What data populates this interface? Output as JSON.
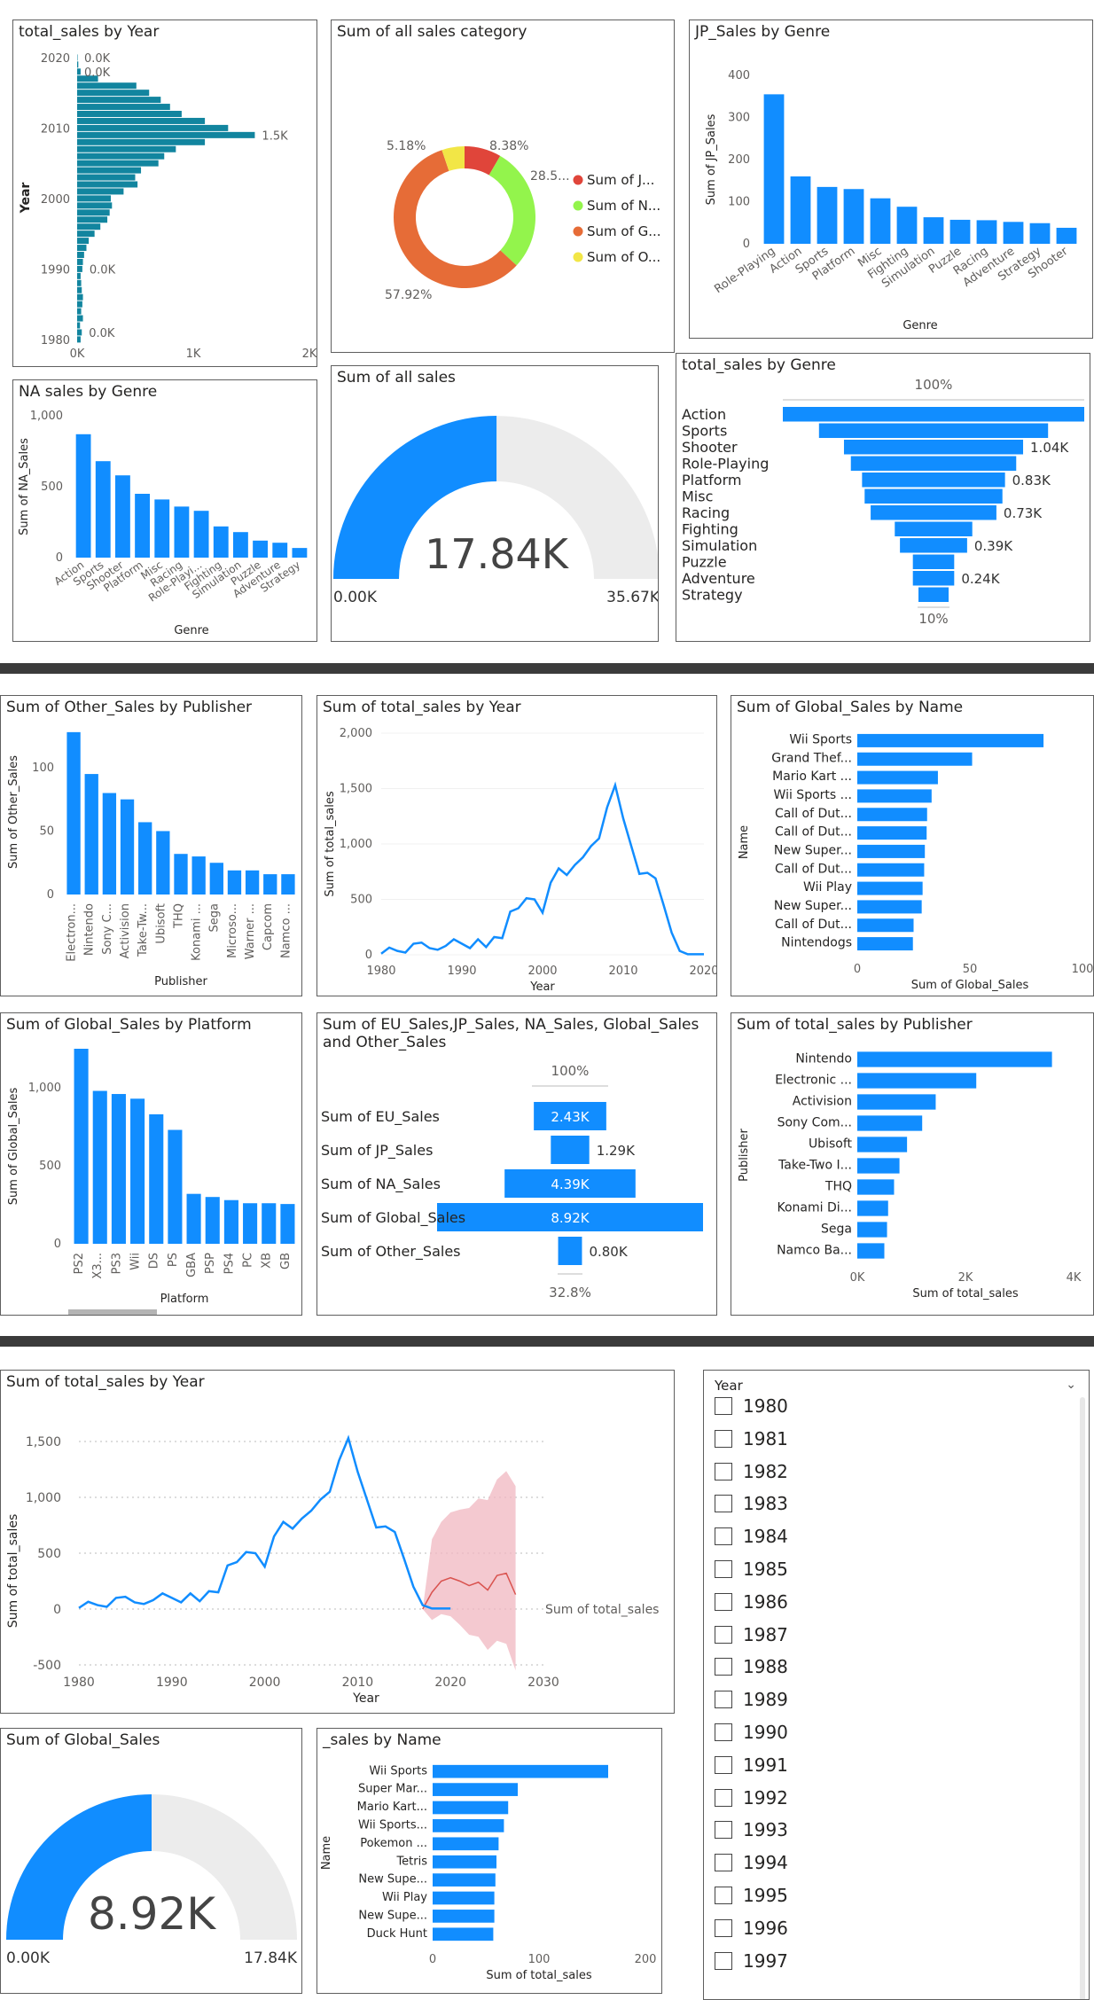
{
  "colors": {
    "accent": "#118dff",
    "teal": "#12859f",
    "orange": "#e66c37",
    "lime": "#93f44c",
    "yellow": "#f2e646",
    "red": "#e0453a",
    "forecast": "#f0b7c0"
  },
  "c1": {
    "title": "total_sales by Year",
    "xlabel": "Sum of total_sales",
    "ylabel": "Year",
    "ticks_x": [
      "0K",
      "1K",
      "2K"
    ],
    "ticks_y": [
      "2020",
      "2010",
      "2000",
      "1990",
      "1980"
    ],
    "labels": [
      "0.0K",
      "0.0K",
      "1.5K",
      "0.0K",
      "0.0K"
    ]
  },
  "c2": {
    "title": "Sum of all sales category",
    "labels": [
      "5.18%",
      "8.38%",
      "28.5...",
      "57.92%"
    ],
    "legend": [
      "Sum of J...",
      "Sum of N...",
      "Sum of G...",
      "Sum of O..."
    ]
  },
  "c3": {
    "title": "JP_Sales by Genre",
    "xlabel": "Genre",
    "ylabel": "Sum of JP_Sales",
    "ticks_y": [
      "400",
      "300",
      "200",
      "100",
      "0"
    ]
  },
  "c4": {
    "title": "NA sales by Genre",
    "xlabel": "Genre",
    "ylabel": "Sum of NA_Sales",
    "ticks_y": [
      "1,000",
      "500",
      "0"
    ]
  },
  "c5": {
    "title": "Sum of all sales",
    "value": "17.84K",
    "min": "0.00K",
    "max": "35.67K"
  },
  "c6": {
    "title": "total_sales by Genre",
    "top": "100%",
    "bottom": "10%",
    "labels": [
      "1.04K",
      "0.83K",
      "0.73K",
      "0.39K",
      "0.24K"
    ]
  },
  "c7": {
    "title": "Sum of Other_Sales by Publisher",
    "xlabel": "Publisher",
    "ylabel": "Sum of Other_Sales",
    "ticks_y": [
      "100",
      "50",
      "0"
    ]
  },
  "c8": {
    "title": "Sum of total_sales by Year",
    "xlabel": "Year",
    "ylabel": "Sum of total_sales",
    "ticks_y": [
      "2,000",
      "1,500",
      "1,000",
      "500",
      "0"
    ],
    "ticks_x": [
      "1980",
      "1990",
      "2000",
      "2010",
      "2020"
    ]
  },
  "c9": {
    "title": "Sum of Global_Sales by Name",
    "xlabel": "Sum of Global_Sales",
    "ylabel": "Name",
    "ticks_x": [
      "0",
      "50",
      "100"
    ]
  },
  "c10": {
    "title": "Sum of Global_Sales by Platform",
    "xlabel": "Platform",
    "ylabel": "Sum of Global_Sales",
    "ticks_y": [
      "1,000",
      "500",
      "0"
    ]
  },
  "c11": {
    "title1": "Sum of EU_Sales,JP_Sales, NA_Sales, Global_Sales",
    "title2": "and Other_Sales",
    "top": "100%",
    "bottom": "32.8%",
    "rows": [
      "Sum of EU_Sales",
      "Sum of JP_Sales",
      "Sum of NA_Sales",
      "Sum of Global_Sales",
      "Sum of Other_Sales"
    ],
    "labels": [
      "2.43K",
      "1.29K",
      "4.39K",
      "8.92K",
      "0.80K"
    ]
  },
  "c12": {
    "title": "Sum of total_sales by Publisher",
    "xlabel": "Sum of total_sales",
    "ylabel": "Publisher",
    "ticks_x": [
      "0K",
      "2K",
      "4K"
    ]
  },
  "c13": {
    "title": "Sum of total_sales by Year",
    "xlabel": "Year",
    "ylabel": "Sum of total_sales",
    "series_label": "Sum of total_sales",
    "ticks_y": [
      "1,500",
      "1,000",
      "500",
      "0",
      "-500"
    ],
    "ticks_x": [
      "1980",
      "1990",
      "2000",
      "2010",
      "2020",
      "2030"
    ]
  },
  "c14": {
    "title": "Sum of Global_Sales",
    "value": "8.92K",
    "min": "0.00K",
    "max": "17.84K"
  },
  "c15": {
    "title": "_sales by Name",
    "xlabel": "Sum of total_sales",
    "ylabel": "Name",
    "ticks_x": [
      "0",
      "100",
      "200"
    ]
  },
  "slicer": {
    "title": "Year",
    "items": [
      "1980",
      "1981",
      "1982",
      "1983",
      "1984",
      "1985",
      "1986",
      "1987",
      "1988",
      "1989",
      "1990",
      "1991",
      "1992",
      "1993",
      "1994",
      "1995",
      "1996",
      "1997"
    ]
  },
  "chart_data": [
    {
      "type": "bar",
      "orientation": "horizontal",
      "title": "total_sales by Year",
      "xlabel": "Sum of total_sales",
      "ylabel": "Year",
      "xlim": [
        0,
        2000
      ],
      "x": [
        1980,
        1981,
        1982,
        1983,
        1984,
        1985,
        1986,
        1987,
        1988,
        1989,
        1990,
        1991,
        1992,
        1993,
        1994,
        1995,
        1996,
        1997,
        1998,
        1999,
        2000,
        2001,
        2002,
        2003,
        2004,
        2005,
        2006,
        2007,
        2008,
        2009,
        2010,
        2011,
        2012,
        2013,
        2014,
        2015,
        2016,
        2017,
        2018,
        2019,
        2020
      ],
      "values": [
        30,
        40,
        25,
        50,
        35,
        45,
        50,
        40,
        35,
        30,
        45,
        50,
        60,
        80,
        100,
        150,
        200,
        260,
        280,
        300,
        290,
        400,
        520,
        500,
        550,
        700,
        750,
        850,
        1100,
        1530,
        1300,
        1100,
        900,
        800,
        720,
        620,
        510,
        180,
        30,
        10,
        2
      ]
    },
    {
      "type": "pie",
      "title": "Sum of all sales category",
      "categories": [
        "Sum of J...",
        "Sum of N...",
        "Sum of G...",
        "Sum of O..."
      ],
      "values": [
        8.38,
        28.5,
        57.92,
        5.18
      ]
    },
    {
      "type": "bar",
      "title": "JP_Sales by Genre",
      "xlabel": "Genre",
      "ylabel": "Sum of JP_Sales",
      "ylim": [
        0,
        400
      ],
      "categories": [
        "Role-Playing",
        "Action",
        "Sports",
        "Platform",
        "Misc",
        "Fighting",
        "Simulation",
        "Puzzle",
        "Racing",
        "Adventure",
        "Strategy",
        "Shooter"
      ],
      "values": [
        355,
        160,
        135,
        130,
        108,
        88,
        63,
        57,
        56,
        52,
        49,
        38
      ]
    },
    {
      "type": "bar",
      "title": "NA sales by Genre",
      "xlabel": "Genre",
      "ylabel": "Sum of NA_Sales",
      "ylim": [
        0,
        1000
      ],
      "categories": [
        "Action",
        "Sports",
        "Shooter",
        "Platform",
        "Misc",
        "Racing",
        "Role-Playi...",
        "Fighting",
        "Simulation",
        "Puzzle",
        "Adventure",
        "Strategy"
      ],
      "values": [
        870,
        680,
        580,
        450,
        410,
        360,
        330,
        220,
        180,
        120,
        105,
        68
      ]
    },
    {
      "type": "gauge",
      "title": "Sum of all sales",
      "value": 17840,
      "min": 0,
      "max": 35670
    },
    {
      "type": "bar",
      "orientation": "funnel",
      "title": "total_sales by Genre",
      "categories": [
        "Action",
        "Sports",
        "Shooter",
        "Role-Playing",
        "Platform",
        "Misc",
        "Racing",
        "Fighting",
        "Simulation",
        "Puzzle",
        "Adventure",
        "Strategy"
      ],
      "values": [
        1750,
        1330,
        1040,
        960,
        830,
        800,
        730,
        450,
        390,
        240,
        240,
        175
      ]
    },
    {
      "type": "bar",
      "title": "Sum of Other_Sales by Publisher",
      "xlabel": "Publisher",
      "ylabel": "Sum of Other_Sales",
      "ylim": [
        0,
        130
      ],
      "categories": [
        "Electron...",
        "Nintendo",
        "Sony C...",
        "Activision",
        "Take-Tw...",
        "Ubisoft",
        "THQ",
        "Konami ...",
        "Sega",
        "Microso...",
        "Warner ...",
        "Capcom",
        "Namco ..."
      ],
      "values": [
        128,
        95,
        80,
        75,
        57,
        50,
        32,
        30,
        25,
        19,
        19,
        16,
        16
      ]
    },
    {
      "type": "line",
      "title": "Sum of total_sales by Year",
      "xlabel": "Year",
      "ylabel": "Sum of total_sales",
      "ylim": [
        0,
        2000
      ],
      "x": [
        1980,
        1981,
        1982,
        1983,
        1984,
        1985,
        1986,
        1987,
        1988,
        1989,
        1990,
        1991,
        1992,
        1993,
        1994,
        1995,
        1996,
        1997,
        1998,
        1999,
        2000,
        2001,
        2002,
        2003,
        2004,
        2005,
        2006,
        2007,
        2008,
        2009,
        2010,
        2011,
        2012,
        2013,
        2014,
        2015,
        2016,
        2017,
        2018,
        2019,
        2020
      ],
      "values": [
        10,
        65,
        35,
        20,
        100,
        110,
        60,
        45,
        80,
        140,
        100,
        60,
        140,
        70,
        160,
        150,
        390,
        420,
        510,
        500,
        380,
        650,
        780,
        720,
        810,
        880,
        980,
        1050,
        1330,
        1530,
        1230,
        980,
        730,
        740,
        690,
        450,
        200,
        35,
        5,
        5,
        5
      ]
    },
    {
      "type": "bar",
      "orientation": "horizontal",
      "title": "Sum of Global_Sales by Name",
      "xlabel": "Sum of Global_Sales",
      "ylabel": "Name",
      "xlim": [
        0,
        100
      ],
      "categories": [
        "Wii Sports",
        "Grand Thef...",
        "Mario Kart ...",
        "Wii Sports ...",
        "Call of Dut...",
        "Call of Dut...",
        "New Super...",
        "Call of Dut...",
        "Wii Play",
        "New Super...",
        "Call of Dut...",
        "Nintendogs"
      ],
      "values": [
        82.7,
        51.0,
        35.8,
        33.0,
        31.0,
        30.8,
        30.0,
        29.7,
        29.0,
        28.6,
        25.0,
        24.7
      ]
    },
    {
      "type": "bar",
      "title": "Sum of Global_Sales by Platform",
      "xlabel": "Platform",
      "ylabel": "Sum of Global_Sales",
      "ylim": [
        0,
        1250
      ],
      "categories": [
        "PS2",
        "X3...",
        "PS3",
        "Wii",
        "DS",
        "PS",
        "GBA",
        "PSP",
        "PS4",
        "PC",
        "XB",
        "GB"
      ],
      "values": [
        1250,
        980,
        960,
        930,
        830,
        730,
        320,
        300,
        280,
        260,
        260,
        255
      ]
    },
    {
      "type": "bar",
      "orientation": "funnel",
      "title": "Sum of EU_Sales,JP_Sales, NA_Sales, Global_Sales and Other_Sales",
      "categories": [
        "Sum of EU_Sales",
        "Sum of JP_Sales",
        "Sum of NA_Sales",
        "Sum of Global_Sales",
        "Sum of Other_Sales"
      ],
      "values": [
        2430,
        1290,
        4390,
        8920,
        800
      ]
    },
    {
      "type": "bar",
      "orientation": "horizontal",
      "title": "Sum of total_sales by Publisher",
      "xlabel": "Sum of total_sales",
      "ylabel": "Publisher",
      "xlim": [
        0,
        4000
      ],
      "categories": [
        "Nintendo",
        "Electronic ...",
        "Activision",
        "Sony Com...",
        "Ubisoft",
        "Take-Two I...",
        "THQ",
        "Konami Di...",
        "Sega",
        "Namco Ba..."
      ],
      "values": [
        3600,
        2200,
        1450,
        1200,
        920,
        780,
        680,
        570,
        550,
        500
      ]
    },
    {
      "type": "line",
      "title": "Sum of total_sales by Year",
      "xlabel": "Year",
      "ylabel": "Sum of total_sales",
      "ylim": [
        -500,
        1500
      ],
      "series": [
        {
          "name": "Sum of total_sales",
          "x": [
            1980,
            1981,
            1982,
            1983,
            1984,
            1985,
            1986,
            1987,
            1988,
            1989,
            1990,
            1991,
            1992,
            1993,
            1994,
            1995,
            1996,
            1997,
            1998,
            1999,
            2000,
            2001,
            2002,
            2003,
            2004,
            2005,
            2006,
            2007,
            2008,
            2009,
            2010,
            2011,
            2012,
            2013,
            2014,
            2015,
            2016,
            2017,
            2018,
            2019,
            2020
          ],
          "values": [
            10,
            65,
            35,
            20,
            100,
            110,
            60,
            45,
            80,
            140,
            100,
            60,
            140,
            70,
            160,
            150,
            390,
            420,
            510,
            500,
            380,
            650,
            780,
            720,
            810,
            880,
            980,
            1050,
            1330,
            1530,
            1230,
            980,
            730,
            740,
            690,
            450,
            200,
            35,
            5,
            5,
            5
          ]
        },
        {
          "x": [
            2017,
            2018,
            2019,
            2020,
            2021,
            2022,
            2023,
            2024,
            2025,
            2026,
            2027
          ],
          "values": [
            0,
            150,
            250,
            280,
            250,
            210,
            240,
            170,
            300,
            320,
            130
          ]
        }
      ]
    },
    {
      "type": "gauge",
      "title": "Sum of Global_Sales",
      "value": 8920,
      "min": 0,
      "max": 17840
    },
    {
      "type": "bar",
      "orientation": "horizontal",
      "title": "_sales by Name",
      "xlabel": "Sum of total_sales",
      "ylabel": "Name",
      "xlim": [
        0,
        200
      ],
      "categories": [
        "Wii Sports",
        "Super Mar...",
        "Mario Kart...",
        "Wii Sports...",
        "Pokemon ...",
        "Tetris",
        "New Supe...",
        "Wii Play",
        "New Supe...",
        "Duck Hunt"
      ],
      "values": [
        165,
        80,
        71,
        67,
        62,
        60,
        59,
        58,
        58,
        57
      ]
    }
  ]
}
